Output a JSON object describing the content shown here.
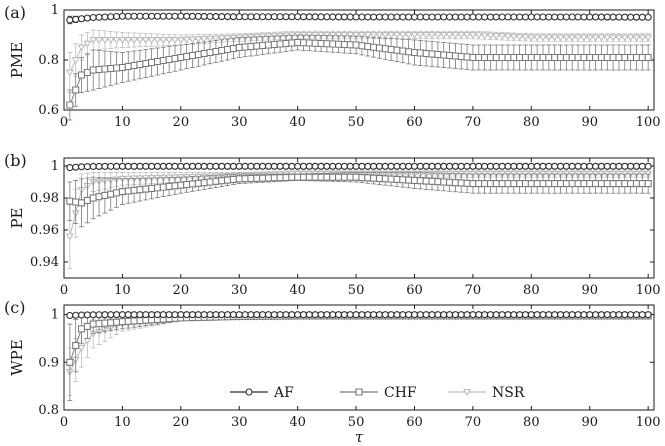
{
  "chart_data": [
    {
      "type": "line",
      "panel_label": "(a)",
      "ylabel": "PME",
      "xlim": [
        0,
        101
      ],
      "ylim": [
        0.6,
        1.0
      ],
      "xticks": [
        0,
        10,
        20,
        30,
        40,
        50,
        60,
        70,
        80,
        90,
        100
      ],
      "yticks": [
        0.6,
        0.8,
        1
      ],
      "ytick_labels": [
        "0.6",
        "0.8",
        "1"
      ],
      "series": [
        {
          "name": "AF",
          "marker": "circle",
          "color": "#2b2b2b",
          "x": [
            1,
            3,
            5,
            10,
            20,
            30,
            40,
            50,
            60,
            70,
            80,
            90,
            100
          ],
          "y": [
            0.96,
            0.965,
            0.97,
            0.975,
            0.975,
            0.973,
            0.973,
            0.972,
            0.972,
            0.972,
            0.972,
            0.972,
            0.971
          ],
          "err": [
            0.015,
            0.01,
            0.008,
            0.006,
            0.005,
            0.005,
            0.005,
            0.005,
            0.005,
            0.005,
            0.005,
            0.005,
            0.005
          ]
        },
        {
          "name": "CHF",
          "marker": "square",
          "color": "#7a7a7a",
          "x": [
            1,
            3,
            5,
            10,
            20,
            30,
            40,
            50,
            60,
            70,
            80,
            90,
            100
          ],
          "y": [
            0.62,
            0.74,
            0.76,
            0.77,
            0.81,
            0.85,
            0.87,
            0.86,
            0.83,
            0.81,
            0.81,
            0.81,
            0.81
          ],
          "err": [
            0.06,
            0.07,
            0.08,
            0.06,
            0.05,
            0.04,
            0.03,
            0.035,
            0.05,
            0.05,
            0.05,
            0.05,
            0.05
          ]
        },
        {
          "name": "NSR",
          "marker": "triangle-down",
          "color": "#bdbdbd",
          "x": [
            1,
            3,
            5,
            10,
            20,
            30,
            40,
            50,
            60,
            70,
            80,
            90,
            100
          ],
          "y": [
            0.75,
            0.85,
            0.88,
            0.88,
            0.88,
            0.89,
            0.9,
            0.9,
            0.9,
            0.9,
            0.89,
            0.89,
            0.89
          ],
          "err": [
            0.08,
            0.05,
            0.04,
            0.03,
            0.02,
            0.015,
            0.015,
            0.015,
            0.015,
            0.015,
            0.015,
            0.015,
            0.015
          ]
        }
      ]
    },
    {
      "type": "line",
      "panel_label": "(b)",
      "ylabel": "PE",
      "xlim": [
        0,
        101
      ],
      "ylim": [
        0.93,
        1.005
      ],
      "xticks": [
        0,
        10,
        20,
        30,
        40,
        50,
        60,
        70,
        80,
        90,
        100
      ],
      "yticks": [
        0.94,
        0.96,
        0.98,
        1
      ],
      "ytick_labels": [
        "0.94",
        "0.96",
        "0.98",
        "1"
      ],
      "series": [
        {
          "name": "AF",
          "marker": "circle",
          "color": "#2b2b2b",
          "x": [
            1,
            3,
            5,
            10,
            20,
            30,
            40,
            50,
            60,
            70,
            80,
            90,
            100
          ],
          "y": [
            0.999,
            0.9995,
            0.9997,
            0.9998,
            0.9998,
            0.9998,
            0.9998,
            0.9998,
            0.9998,
            0.9998,
            0.9998,
            0.9998,
            0.9998
          ],
          "err": [
            0.001,
            0.0007,
            0.0005,
            0.0003,
            0.0002,
            0.0002,
            0.0002,
            0.0002,
            0.0002,
            0.0002,
            0.0002,
            0.0002,
            0.0002
          ]
        },
        {
          "name": "CHF",
          "marker": "square",
          "color": "#7a7a7a",
          "x": [
            1,
            3,
            5,
            10,
            20,
            30,
            40,
            50,
            60,
            70,
            80,
            90,
            100
          ],
          "y": [
            0.978,
            0.977,
            0.98,
            0.984,
            0.988,
            0.992,
            0.993,
            0.993,
            0.991,
            0.989,
            0.989,
            0.989,
            0.989
          ],
          "err": [
            0.012,
            0.015,
            0.013,
            0.008,
            0.005,
            0.003,
            0.002,
            0.003,
            0.005,
            0.006,
            0.006,
            0.006,
            0.006
          ]
        },
        {
          "name": "NSR",
          "marker": "triangle-down",
          "color": "#bdbdbd",
          "x": [
            1,
            3,
            5,
            10,
            20,
            30,
            40,
            50,
            60,
            70,
            80,
            90,
            100
          ],
          "y": [
            0.956,
            0.985,
            0.99,
            0.992,
            0.993,
            0.994,
            0.995,
            0.995,
            0.995,
            0.995,
            0.995,
            0.995,
            0.995
          ],
          "err": [
            0.02,
            0.01,
            0.006,
            0.004,
            0.003,
            0.002,
            0.002,
            0.002,
            0.002,
            0.002,
            0.002,
            0.002,
            0.002
          ]
        }
      ]
    },
    {
      "type": "line",
      "panel_label": "(c)",
      "ylabel": "WPE",
      "xlabel": "τ",
      "xlim": [
        0,
        101
      ],
      "ylim": [
        0.8,
        1.02
      ],
      "xticks": [
        0,
        10,
        20,
        30,
        40,
        50,
        60,
        70,
        80,
        90,
        100
      ],
      "yticks": [
        0.8,
        0.9,
        1
      ],
      "ytick_labels": [
        "0.8",
        "0.9",
        "1"
      ],
      "legend": {
        "placement": "bottom-center",
        "entries": [
          "AF",
          "CHF",
          "NSR"
        ]
      },
      "series": [
        {
          "name": "AF",
          "marker": "circle",
          "color": "#2b2b2b",
          "x": [
            1,
            3,
            5,
            10,
            20,
            30,
            40,
            50,
            60,
            70,
            80,
            90,
            100
          ],
          "y": [
            0.998,
            0.999,
            0.9995,
            0.9998,
            0.9998,
            0.9998,
            0.9998,
            0.9998,
            0.9998,
            0.9998,
            0.9998,
            0.9998,
            0.9998
          ],
          "err": [
            0.003,
            0.002,
            0.001,
            0.0005,
            0.0003,
            0.0003,
            0.0003,
            0.0003,
            0.0003,
            0.0003,
            0.0003,
            0.0003,
            0.0003
          ]
        },
        {
          "name": "CHF",
          "marker": "square",
          "color": "#7a7a7a",
          "x": [
            1,
            3,
            5,
            10,
            20,
            30,
            40,
            50,
            60,
            70,
            80,
            90,
            100
          ],
          "y": [
            0.9,
            0.97,
            0.98,
            0.985,
            0.993,
            0.996,
            0.997,
            0.997,
            0.997,
            0.997,
            0.997,
            0.997,
            0.997
          ],
          "err": [
            0.08,
            0.03,
            0.02,
            0.015,
            0.006,
            0.004,
            0.003,
            0.003,
            0.003,
            0.003,
            0.003,
            0.003,
            0.003
          ]
        },
        {
          "name": "NSR",
          "marker": "triangle-down",
          "color": "#bdbdbd",
          "x": [
            1,
            3,
            5,
            10,
            20,
            30,
            40,
            50,
            60,
            70,
            80,
            90,
            100
          ],
          "y": [
            0.88,
            0.93,
            0.96,
            0.98,
            0.993,
            0.995,
            0.996,
            0.996,
            0.996,
            0.996,
            0.996,
            0.996,
            0.996
          ],
          "err": [
            0.05,
            0.04,
            0.03,
            0.015,
            0.006,
            0.004,
            0.003,
            0.003,
            0.003,
            0.003,
            0.003,
            0.003,
            0.003
          ]
        }
      ]
    }
  ]
}
